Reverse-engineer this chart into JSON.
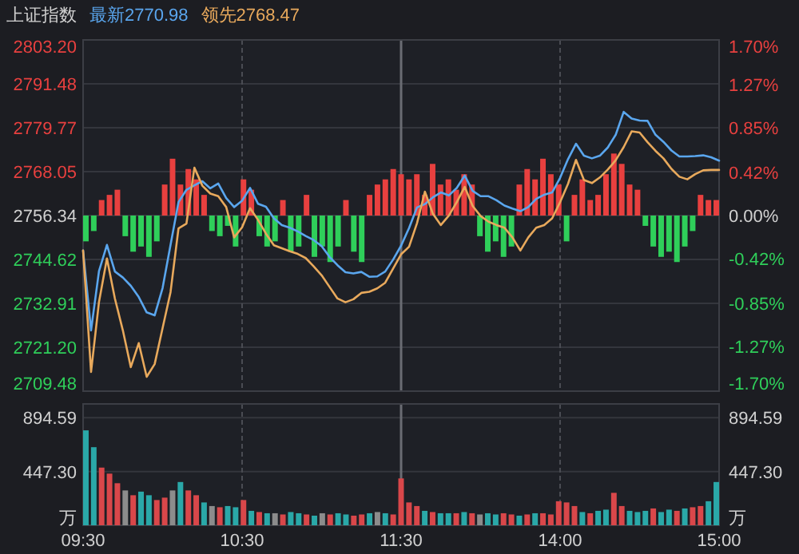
{
  "chart_data": [
    {
      "type": "line",
      "title": "上证指数",
      "legend": "top left",
      "grid": true,
      "tick_labels": "y",
      "categories": [
        null,
        null,
        null,
        null,
        null,
        null,
        null,
        null,
        null,
        null,
        null,
        null,
        null,
        null,
        null,
        null,
        null,
        null,
        null,
        null,
        null,
        null,
        null,
        null,
        null,
        null,
        null,
        null,
        null,
        null,
        null,
        null,
        null,
        null,
        null,
        null,
        null,
        null,
        null,
        null,
        null,
        null,
        null,
        null,
        null,
        null,
        null,
        null,
        null,
        null,
        null,
        null,
        null,
        null,
        null,
        null,
        null,
        null,
        null,
        null,
        null,
        null,
        null,
        null,
        null,
        null,
        null,
        null,
        null,
        null,
        null,
        null,
        null,
        null,
        null,
        null,
        null,
        null,
        null,
        null,
        null
      ],
      "ylim": [
        2709.48,
        2803.2
      ],
      "yticks": [
        {
          "value": 2709.48,
          "label": "2709.48"
        },
        {
          "value": 2721.2,
          "label": "2721.20"
        },
        {
          "value": 2732.91,
          "label": "2732.91"
        },
        {
          "value": 2744.62,
          "label": "2744.62"
        },
        {
          "value": 2756.34,
          "label": "2756.34"
        },
        {
          "value": 2768.05,
          "label": "2768.05"
        },
        {
          "value": 2779.77,
          "label": "2779.77"
        },
        {
          "value": 2791.48,
          "label": "2791.48"
        },
        {
          "value": 2803.2,
          "label": "2803.20"
        }
      ],
      "y2lim": [
        -1.7,
        1.7
      ],
      "y2ticks": [
        {
          "value": -1.7,
          "label": "-1.70%"
        },
        {
          "value": -1.27,
          "label": "-1.27%"
        },
        {
          "value": -0.85,
          "label": "-0.85%"
        },
        {
          "value": -0.42,
          "label": "-0.42%"
        },
        {
          "value": 0,
          "label": "0.00%"
        },
        {
          "value": 0.42,
          "label": "0.42%"
        },
        {
          "value": 0.85,
          "label": "0.85%"
        },
        {
          "value": 1.27,
          "label": "1.27%"
        },
        {
          "value": 1.7,
          "label": "1.70%"
        }
      ],
      "series": [
        {
          "type": "bar",
          "axis": "y2",
          "values": [
            -0.25,
            -0.15,
            0.15,
            0.2,
            0.25,
            -0.2,
            -0.35,
            -0.3,
            -0.4,
            -0.25,
            0.3,
            0.55,
            0.3,
            0.45,
            0.35,
            0.2,
            -0.15,
            -0.2,
            -0.1,
            -0.3,
            0.35,
            0.25,
            -0.2,
            -0.3,
            -0.25,
            0.15,
            -0.35,
            -0.3,
            0.2,
            -0.4,
            -0.3,
            -0.45,
            -0.3,
            0.15,
            -0.35,
            -0.45,
            0.2,
            0.3,
            0.35,
            0.45,
            0.4,
            0.35,
            0.4,
            0.2,
            0.5,
            0.3,
            0.35,
            0.25,
            0.4,
            0.3,
            -0.2,
            -0.35,
            -0.25,
            -0.4,
            -0.3,
            0.3,
            0.45,
            0.35,
            0.55,
            0.4,
            0.3,
            -0.25,
            0.2,
            0.35,
            0.15,
            0.2,
            0.4,
            0.6,
            0.5,
            0.3,
            0.25,
            -0.1,
            -0.3,
            -0.4,
            -0.35,
            -0.45,
            -0.3,
            -0.15,
            0.2,
            0.15,
            0.15
          ],
          "colors": [
            "#2fcf5a",
            "#2fcf5a",
            "#e8403f",
            "#e8403f",
            "#e8403f",
            "#2fcf5a",
            "#2fcf5a",
            "#2fcf5a",
            "#2fcf5a",
            "#2fcf5a",
            "#e8403f",
            "#e8403f",
            "#e8403f",
            "#e8403f",
            "#e8403f",
            "#e8403f",
            "#2fcf5a",
            "#2fcf5a",
            "#2fcf5a",
            "#2fcf5a",
            "#e8403f",
            "#e8403f",
            "#2fcf5a",
            "#2fcf5a",
            "#2fcf5a",
            "#e8403f",
            "#2fcf5a",
            "#2fcf5a",
            "#e8403f",
            "#2fcf5a",
            "#2fcf5a",
            "#2fcf5a",
            "#2fcf5a",
            "#e8403f",
            "#2fcf5a",
            "#2fcf5a",
            "#e8403f",
            "#e8403f",
            "#e8403f",
            "#e8403f",
            "#e8403f",
            "#e8403f",
            "#e8403f",
            "#e8403f",
            "#e8403f",
            "#e8403f",
            "#e8403f",
            "#e8403f",
            "#e8403f",
            "#e8403f",
            "#2fcf5a",
            "#2fcf5a",
            "#2fcf5a",
            "#2fcf5a",
            "#2fcf5a",
            "#e8403f",
            "#e8403f",
            "#e8403f",
            "#e8403f",
            "#e8403f",
            "#e8403f",
            "#2fcf5a",
            "#e8403f",
            "#e8403f",
            "#e8403f",
            "#e8403f",
            "#e8403f",
            "#e8403f",
            "#e8403f",
            "#e8403f",
            "#e8403f",
            "#2fcf5a",
            "#2fcf5a",
            "#2fcf5a",
            "#2fcf5a",
            "#2fcf5a",
            "#2fcf5a",
            "#2fcf5a",
            "#e8403f",
            "#e8403f",
            "#e8403f"
          ]
        },
        {
          "name": "最新2770.98",
          "color": "#5aa6ee",
          "values": [
            2747.0,
            2725.7,
            2741.5,
            2748.5,
            2741.4,
            2739.8,
            2737.6,
            2734.6,
            2730.5,
            2729.7,
            2737.0,
            2748.5,
            2759.9,
            2763.2,
            2764.4,
            2765.5,
            2763.6,
            2764.9,
            2761.0,
            2758.6,
            2760.3,
            2763.7,
            2759.5,
            2758.7,
            2755.6,
            2753.8,
            2753.1,
            2752.1,
            2750.9,
            2749.8,
            2748.2,
            2745.3,
            2743.1,
            2741.2,
            2740.9,
            2741.3,
            2740.0,
            2740.1,
            2741.4,
            2744.6,
            2748.3,
            2753.0,
            2758.5,
            2759.4,
            2761.2,
            2762.5,
            2761.7,
            2763.7,
            2767.0,
            2762.9,
            2761.5,
            2761.5,
            2760.4,
            2759.0,
            2758.2,
            2757.5,
            2758.6,
            2760.8,
            2761.9,
            2762.5,
            2766.4,
            2771.4,
            2775.5,
            2772.3,
            2771.6,
            2772.3,
            2774.5,
            2777.9,
            2784.0,
            2782.2,
            2781.7,
            2781.6,
            2777.9,
            2776.0,
            2773.7,
            2772.1,
            2772.1,
            2772.2,
            2772.4,
            2771.9,
            2771.0
          ]
        },
        {
          "name": "领先2768.47",
          "color": "#e8a95c",
          "values": [
            2747.0,
            2714.6,
            2733.3,
            2744.9,
            2734.2,
            2725.7,
            2715.9,
            2722.3,
            2713.3,
            2716.7,
            2726.3,
            2735.9,
            2752.9,
            2754.2,
            2769.1,
            2764.3,
            2762.2,
            2761.5,
            2758.6,
            2750.5,
            2753.2,
            2758.3,
            2755.2,
            2751.5,
            2748.4,
            2747.6,
            2746.8,
            2746.1,
            2745.0,
            2742.8,
            2740.4,
            2737.3,
            2734.2,
            2733.2,
            2734.0,
            2735.7,
            2736.0,
            2736.9,
            2738.4,
            2742.2,
            2746.0,
            2748.0,
            2754.3,
            2762.7,
            2756.8,
            2753.8,
            2756.3,
            2759.9,
            2764.0,
            2758.9,
            2756.2,
            2754.7,
            2753.8,
            2753.1,
            2750.5,
            2747.0,
            2750.5,
            2753.1,
            2753.8,
            2755.6,
            2759.9,
            2764.8,
            2771.2,
            2765.8,
            2765.0,
            2766.5,
            2768.6,
            2771.1,
            2774.6,
            2778.8,
            2778.5,
            2775.9,
            2773.6,
            2771.6,
            2768.8,
            2766.7,
            2766.0,
            2767.4,
            2768.4,
            2768.5,
            2768.5
          ]
        }
      ]
    },
    {
      "type": "bar",
      "grid": true,
      "categories": [
        "09:30",
        null,
        null,
        null,
        null,
        null,
        null,
        null,
        null,
        null,
        null,
        null,
        null,
        null,
        null,
        null,
        null,
        null,
        null,
        null,
        "10:30",
        null,
        null,
        null,
        null,
        null,
        null,
        null,
        null,
        null,
        null,
        null,
        null,
        null,
        null,
        null,
        null,
        null,
        null,
        null,
        "11:30",
        null,
        null,
        null,
        null,
        null,
        null,
        null,
        null,
        null,
        null,
        null,
        null,
        null,
        null,
        null,
        null,
        null,
        null,
        null,
        "14:00",
        null,
        null,
        null,
        null,
        null,
        null,
        null,
        null,
        null,
        null,
        null,
        null,
        null,
        null,
        null,
        null,
        null,
        null,
        null,
        "15:00"
      ],
      "ylim": [
        0,
        1010
      ],
      "yticks": [
        {
          "value": 0,
          "label": "万"
        },
        {
          "value": 447.3,
          "label": "447.30"
        },
        {
          "value": 894.59,
          "label": "894.59"
        }
      ],
      "y2lim": [
        0,
        1010
      ],
      "y2ticks": [
        {
          "value": 0,
          "label": "万"
        },
        {
          "value": 447.3,
          "label": "447.30"
        },
        {
          "value": 894.59,
          "label": "894.59"
        }
      ],
      "values": [
        790,
        650,
        480,
        430,
        350,
        290,
        250,
        280,
        250,
        210,
        230,
        290,
        360,
        290,
        250,
        190,
        160,
        150,
        160,
        150,
        210,
        120,
        110,
        100,
        100,
        90,
        110,
        100,
        90,
        80,
        100,
        90,
        100,
        90,
        80,
        90,
        100,
        110,
        100,
        90,
        390,
        190,
        160,
        120,
        110,
        100,
        100,
        100,
        110,
        100,
        90,
        100,
        90,
        100,
        90,
        80,
        90,
        100,
        100,
        90,
        200,
        190,
        160,
        110,
        100,
        120,
        130,
        270,
        160,
        120,
        110,
        120,
        140,
        110,
        130,
        120,
        140,
        150,
        160,
        200,
        360
      ],
      "colors": [
        "#2aa8a8",
        "#2aa8a8",
        "#d9474a",
        "#d9474a",
        "#d9474a",
        "#8c8c8c",
        "#d9474a",
        "#2aa8a8",
        "#2aa8a8",
        "#d9474a",
        "#d9474a",
        "#8c8c8c",
        "#2aa8a8",
        "#d9474a",
        "#d9474a",
        "#2aa8a8",
        "#8c8c8c",
        "#d9474a",
        "#2aa8a8",
        "#2aa8a8",
        "#d9474a",
        "#2aa8a8",
        "#d9474a",
        "#2aa8a8",
        "#8c8c8c",
        "#d9474a",
        "#2aa8a8",
        "#2aa8a8",
        "#d9474a",
        "#2aa8a8",
        "#8c8c8c",
        "#d9474a",
        "#2aa8a8",
        "#2aa8a8",
        "#d9474a",
        "#d9474a",
        "#2aa8a8",
        "#8c8c8c",
        "#2aa8a8",
        "#d9474a",
        "#d9474a",
        "#d9474a",
        "#d9474a",
        "#2aa8a8",
        "#d9474a",
        "#2aa8a8",
        "#2aa8a8",
        "#d9474a",
        "#2aa8a8",
        "#d9474a",
        "#8c8c8c",
        "#2aa8a8",
        "#2aa8a8",
        "#d9474a",
        "#d9474a",
        "#2aa8a8",
        "#d9474a",
        "#2aa8a8",
        "#d9474a",
        "#d9474a",
        "#d9474a",
        "#d9474a",
        "#d9474a",
        "#2aa8a8",
        "#d9474a",
        "#2aa8a8",
        "#2aa8a8",
        "#d9474a",
        "#d9474a",
        "#2aa8a8",
        "#2aa8a8",
        "#2aa8a8",
        "#d9474a",
        "#2aa8a8",
        "#2aa8a8",
        "#d9474a",
        "#2aa8a8",
        "#d9474a",
        "#d9474a",
        "#2aa8a8",
        "#2aa8a8"
      ]
    }
  ]
}
